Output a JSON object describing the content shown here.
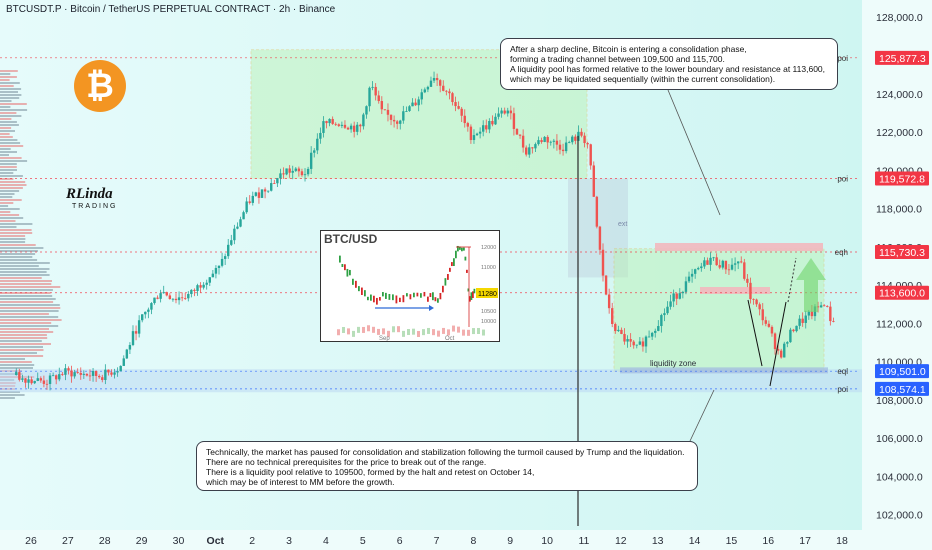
{
  "header": {
    "title": "BTCUSDT.P · Bitcoin / TetherUS PERPETUAL CONTRACT · 2h · Binance"
  },
  "brand": {
    "logo_text": "RLinda TRADING",
    "bitcoin_icon": "bitcoin-icon"
  },
  "colors": {
    "bull": "#26a69a",
    "bear": "#ef5350",
    "zone_green": "#b9f2b0",
    "zone_red": "#f2b8be",
    "label_red": "#f23645",
    "label_blue": "#2962ff"
  },
  "callouts": {
    "top": [
      "After a sharp decline, Bitcoin is entering a consolidation phase,",
      "forming a trading channel between 109,500 and 115,700.",
      "A liquidity pool has formed relative to the lower boundary and resistance at 113,600,",
      "which may be liquidated sequentially (within the current consolidation)."
    ],
    "bottom": [
      "Technically, the market has paused for consolidation and stabilization following the turmoil caused by Trump and the liquidation.",
      "There are no technical prerequisites for the price to break out of the range.",
      "There is a liquidity pool relative to 109500, formed by the halt and retest on October 14,",
      "which may be of interest to MM before the growth."
    ]
  },
  "zone_labels": {
    "liquidity_zone": "liquidity zone",
    "ext": "ext"
  },
  "inset": {
    "title": "BTC/USD",
    "x_ticks": [
      "Sep",
      "Oct"
    ],
    "y_ticks": [
      "12000",
      "11000",
      "10500",
      "10000"
    ],
    "tag": "11280"
  },
  "chart_data": {
    "type": "candlestick",
    "symbol": "BTCUSDT.P",
    "timeframe": "2h",
    "ylim": [
      101200,
      128900
    ],
    "y_ticks": [
      "128,000.0",
      "126,000.0",
      "124,000.0",
      "122,000.0",
      "120,000.0",
      "118,000.0",
      "116,000.0",
      "114,000.0",
      "112,000.0",
      "110,000.0",
      "108,000.0",
      "106,000.0",
      "104,000.0",
      "102,000.0"
    ],
    "x_ticks": [
      "26",
      "27",
      "28",
      "29",
      "30",
      "Oct",
      "2",
      "3",
      "4",
      "5",
      "6",
      "7",
      "8",
      "9",
      "10",
      "11",
      "12",
      "13",
      "14",
      "15",
      "16",
      "17",
      "18"
    ],
    "price_path": [
      {
        "day": 25.6,
        "price": 109300
      },
      {
        "day": 26,
        "price": 109100
      },
      {
        "day": 26.5,
        "price": 108950
      },
      {
        "day": 27,
        "price": 109450
      },
      {
        "day": 27.5,
        "price": 109350
      },
      {
        "day": 28,
        "price": 109250
      },
      {
        "day": 28.5,
        "price": 109700
      },
      {
        "day": 28.9,
        "price": 111600
      },
      {
        "day": 29.2,
        "price": 112600
      },
      {
        "day": 29.6,
        "price": 113700
      },
      {
        "day": 30,
        "price": 113300
      },
      {
        "day": 30.4,
        "price": 113500
      },
      {
        "day": 30.8,
        "price": 114300
      },
      {
        "day": 31.2,
        "price": 114900
      },
      {
        "day": 31.6,
        "price": 116800
      },
      {
        "day": 32,
        "price": 118400
      },
      {
        "day": 32.6,
        "price": 119300
      },
      {
        "day": 33,
        "price": 120000
      },
      {
        "day": 33.5,
        "price": 119800
      },
      {
        "day": 34,
        "price": 122400
      },
      {
        "day": 34.5,
        "price": 122500
      },
      {
        "day": 35,
        "price": 122100
      },
      {
        "day": 35.3,
        "price": 124500
      },
      {
        "day": 35.6,
        "price": 123000
      },
      {
        "day": 36,
        "price": 122600
      },
      {
        "day": 36.5,
        "price": 123500
      },
      {
        "day": 37,
        "price": 125000
      },
      {
        "day": 37.5,
        "price": 123800
      },
      {
        "day": 38,
        "price": 121800
      },
      {
        "day": 38.5,
        "price": 122400
      },
      {
        "day": 39,
        "price": 123200
      },
      {
        "day": 39.5,
        "price": 121000
      },
      {
        "day": 40,
        "price": 121700
      },
      {
        "day": 40.5,
        "price": 121200
      },
      {
        "day": 41,
        "price": 121900
      },
      {
        "day": 41.2,
        "price": 121300
      },
      {
        "day": 41.4,
        "price": 117500
      },
      {
        "day": 41.6,
        "price": 114500
      },
      {
        "day": 41.8,
        "price": 112200
      },
      {
        "day": 42,
        "price": 111500
      },
      {
        "day": 42.5,
        "price": 110600
      },
      {
        "day": 43,
        "price": 111800
      },
      {
        "day": 43.5,
        "price": 113300
      },
      {
        "day": 44,
        "price": 114400
      },
      {
        "day": 44.5,
        "price": 115400
      },
      {
        "day": 45,
        "price": 114900
      },
      {
        "day": 45.3,
        "price": 115300
      },
      {
        "day": 45.6,
        "price": 113400
      },
      {
        "day": 46,
        "price": 112100
      },
      {
        "day": 46.4,
        "price": 110300
      },
      {
        "day": 46.8,
        "price": 111900
      },
      {
        "day": 47.2,
        "price": 112400
      },
      {
        "day": 47.6,
        "price": 113100
      },
      {
        "day": 47.8,
        "price": 112100
      }
    ],
    "levels": [
      {
        "label": "poi",
        "value": "125,877.3",
        "price": 125877.3,
        "color": "#f23645"
      },
      {
        "label": "poi",
        "value": "119,572.8",
        "price": 119572.8,
        "color": "#f23645"
      },
      {
        "label": "eqh",
        "value": "115,730.3",
        "price": 115730.3,
        "color": "#f23645"
      },
      {
        "label": "",
        "value": "113,600.0",
        "price": 113600,
        "color": "#f23645"
      },
      {
        "label": "eql",
        "value": "109,501.0",
        "price": 109501,
        "color": "#2962ff"
      },
      {
        "label": "poi",
        "value": "108,574.1",
        "price": 108574.1,
        "color": "#2962ff"
      }
    ],
    "annotations": [
      "liquidity zone"
    ],
    "grid": false,
    "legend": "none"
  }
}
